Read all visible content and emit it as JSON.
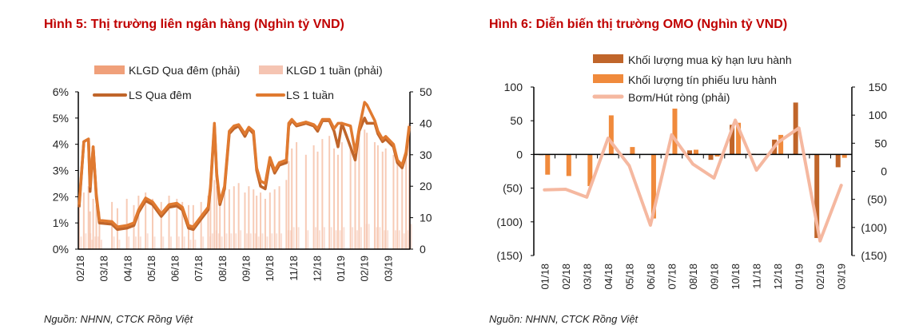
{
  "colors": {
    "title": "#c00000",
    "klgd_qua_dem": "#f0a07a",
    "klgd_1_tuan": "#f5c4b2",
    "ls_qua_dem": "#c0652a",
    "ls_1_tuan": "#e07a30",
    "mua_ky_han": "#c0652a",
    "tin_phieu": "#f08a3c",
    "bom_hut": "#f5b8a0"
  },
  "chart_data": [
    {
      "type": "bar+line",
      "title": "Hình 5: Thị trường liên ngân hàng (Nghìn tỷ VND)",
      "source": "Nguồn: NHNN, CTCK Rồng Việt",
      "legend": [
        "KLGD Qua đêm (phải)",
        "KLGD 1 tuần (phải)",
        "LS Qua đêm",
        "LS 1 tuần"
      ],
      "legend_placement": "top",
      "x_range": [
        "2018-02-01",
        "2019-04-01"
      ],
      "x_tick_labels": [
        "02/18",
        "03/18",
        "04/18",
        "05/18",
        "06/18",
        "07/18",
        "08/18",
        "09/18",
        "10/18",
        "11/18",
        "12/18",
        "01/19",
        "02/19",
        "03/19"
      ],
      "y_left": {
        "range": [
          0,
          6
        ],
        "unit": "%",
        "tick_labels": [
          "0%",
          "1%",
          "2%",
          "3%",
          "4%",
          "5%",
          "6%"
        ]
      },
      "y_right": {
        "range": [
          0,
          50
        ],
        "tick_labels": [
          "0",
          "10",
          "20",
          "30",
          "40",
          "50"
        ]
      },
      "dates": [
        "2018-02-02",
        "2018-02-08",
        "2018-02-14",
        "2018-02-16",
        "2018-02-20",
        "2018-02-24",
        "2018-02-28",
        "2018-03-16",
        "2018-03-23",
        "2018-04-04",
        "2018-04-13",
        "2018-04-19",
        "2018-04-28",
        "2018-05-07",
        "2018-05-18",
        "2018-05-28",
        "2018-06-07",
        "2018-06-14",
        "2018-06-22",
        "2018-06-28",
        "2018-07-08",
        "2018-07-17",
        "2018-07-20",
        "2018-07-25",
        "2018-07-28",
        "2018-08-01",
        "2018-08-07",
        "2018-08-13",
        "2018-08-19",
        "2018-08-25",
        "2018-09-02",
        "2018-09-07",
        "2018-09-13",
        "2018-09-17",
        "2018-09-22",
        "2018-09-28",
        "2018-10-04",
        "2018-10-10",
        "2018-10-16",
        "2018-10-25",
        "2018-10-28",
        "2018-11-01",
        "2018-11-07",
        "2018-11-19",
        "2018-11-29",
        "2018-12-04",
        "2018-12-10",
        "2018-12-19",
        "2018-12-25",
        "2018-12-30",
        "2019-01-04",
        "2019-01-15",
        "2019-01-21",
        "2019-01-26",
        "2019-02-02",
        "2019-02-05",
        "2019-02-15",
        "2019-02-19",
        "2019-02-25",
        "2019-03-01",
        "2019-03-11",
        "2019-03-16",
        "2019-03-22",
        "2019-03-27",
        "2019-03-31"
      ],
      "series": [
        {
          "name": "LS Qua đêm",
          "axis": "left",
          "kind": "line",
          "values": [
            1.6,
            4.1,
            4.2,
            2.2,
            3.9,
            2.0,
            1.0,
            0.95,
            0.75,
            0.8,
            0.9,
            1.4,
            1.85,
            1.7,
            1.25,
            1.6,
            1.65,
            1.5,
            0.8,
            0.75,
            1.15,
            1.5,
            2.3,
            4.7,
            2.8,
            1.7,
            2.3,
            4.4,
            4.6,
            4.7,
            4.3,
            4.6,
            4.4,
            3.0,
            2.4,
            2.3,
            3.4,
            2.9,
            3.2,
            3.3,
            4.7,
            4.9,
            4.7,
            4.8,
            4.7,
            4.5,
            4.9,
            4.9,
            4.5,
            3.9,
            4.8,
            3.9,
            3.4,
            4.5,
            5.0,
            4.8,
            4.8,
            4.4,
            4.1,
            4.2,
            3.9,
            3.3,
            3.1,
            3.6,
            4.6
          ]
        },
        {
          "name": "LS 1 tuần",
          "axis": "left",
          "kind": "line",
          "values": [
            1.7,
            4.1,
            4.2,
            2.4,
            3.9,
            2.1,
            1.1,
            1.05,
            0.85,
            0.9,
            1.0,
            1.5,
            1.95,
            1.8,
            1.35,
            1.7,
            1.75,
            1.6,
            0.9,
            0.85,
            1.25,
            1.6,
            2.4,
            4.8,
            2.9,
            1.8,
            2.4,
            4.5,
            4.7,
            4.75,
            4.4,
            4.65,
            4.5,
            3.1,
            2.6,
            2.5,
            3.5,
            3.0,
            3.3,
            3.4,
            4.8,
            4.95,
            4.75,
            4.85,
            4.75,
            4.6,
            4.95,
            4.95,
            4.6,
            4.8,
            4.8,
            4.7,
            3.7,
            4.6,
            5.6,
            5.5,
            4.9,
            4.5,
            4.2,
            4.3,
            4.0,
            3.4,
            3.2,
            3.7,
            4.7
          ]
        },
        {
          "name": "KLGD Qua đêm (phải)",
          "axis": "right",
          "kind": "bar",
          "values": [
            14,
            18,
            20,
            12,
            16,
            14,
            12,
            15,
            13,
            16,
            14,
            17,
            18,
            16,
            15,
            17,
            16,
            15,
            14,
            14,
            15,
            17,
            18,
            22,
            20,
            16,
            18,
            19,
            20,
            21,
            18,
            20,
            19,
            17,
            18,
            16,
            18,
            19,
            20,
            22,
            28,
            32,
            34,
            30,
            33,
            31,
            35,
            36,
            32,
            30,
            34,
            33,
            30,
            36,
            38,
            37,
            34,
            33,
            31,
            32,
            30,
            29,
            28,
            31,
            40
          ]
        },
        {
          "name": "KLGD 1 tuần (phải)",
          "axis": "right",
          "kind": "bar",
          "values": [
            4,
            5,
            5,
            3,
            4,
            4,
            3,
            4,
            3,
            4,
            4,
            4,
            5,
            4,
            4,
            4,
            4,
            4,
            3,
            3,
            4,
            4,
            5,
            6,
            5,
            4,
            5,
            5,
            5,
            6,
            5,
            5,
            5,
            4,
            5,
            4,
            5,
            5,
            5,
            6,
            6,
            7,
            7,
            6,
            7,
            6,
            7,
            7,
            6,
            6,
            7,
            7,
            6,
            7,
            8,
            8,
            7,
            7,
            6,
            6,
            6,
            6,
            5,
            6,
            8
          ]
        }
      ]
    },
    {
      "type": "bar+line",
      "title": "Hình 6: Diễn biến thị trường OMO (Nghìn tỷ VND)",
      "source": "Nguồn: NHNN, CTCK Rồng Việt",
      "legend": [
        "Khối lượng mua kỳ hạn lưu hành",
        "Khối lượng tín phiếu lưu hành",
        "Bơm/Hút ròng (phải)"
      ],
      "legend_placement": "top",
      "categories": [
        "01/18",
        "02/18",
        "03/18",
        "04/18",
        "05/18",
        "06/18",
        "07/18",
        "08/18",
        "09/18",
        "10/18",
        "11/18",
        "12/18",
        "01/19",
        "02/19",
        "03/19"
      ],
      "y_left": {
        "range": [
          -150,
          100
        ],
        "tick_labels": [
          "(150)",
          "(100)",
          "(50)",
          "0",
          "50",
          "100"
        ]
      },
      "y_right": {
        "range": [
          -150,
          150
        ],
        "tick_labels": [
          "(150)",
          "(100)",
          "(50)",
          "0",
          "50",
          "100",
          "150"
        ]
      },
      "series": [
        {
          "name": "Khối lượng mua kỳ hạn lưu hành",
          "axis": "left",
          "kind": "bar",
          "values": [
            -1,
            0,
            0,
            0,
            0,
            0,
            -1,
            6,
            -8,
            44,
            1,
            22,
            77,
            -124,
            -19
          ]
        },
        {
          "name": "Khối lượng tín phiếu lưu hành",
          "axis": "left",
          "kind": "bar",
          "values": [
            -30,
            -32,
            -47,
            58,
            11,
            -95,
            68,
            7,
            -3,
            47,
            0,
            29,
            0,
            0,
            -5
          ]
        },
        {
          "name": "Bơm/Hút ròng (phải)",
          "axis": "right",
          "kind": "line",
          "values": [
            -33,
            -32,
            -46,
            59,
            10,
            -96,
            65,
            13,
            -12,
            91,
            2,
            51,
            77,
            -124,
            -25
          ]
        }
      ]
    }
  ]
}
